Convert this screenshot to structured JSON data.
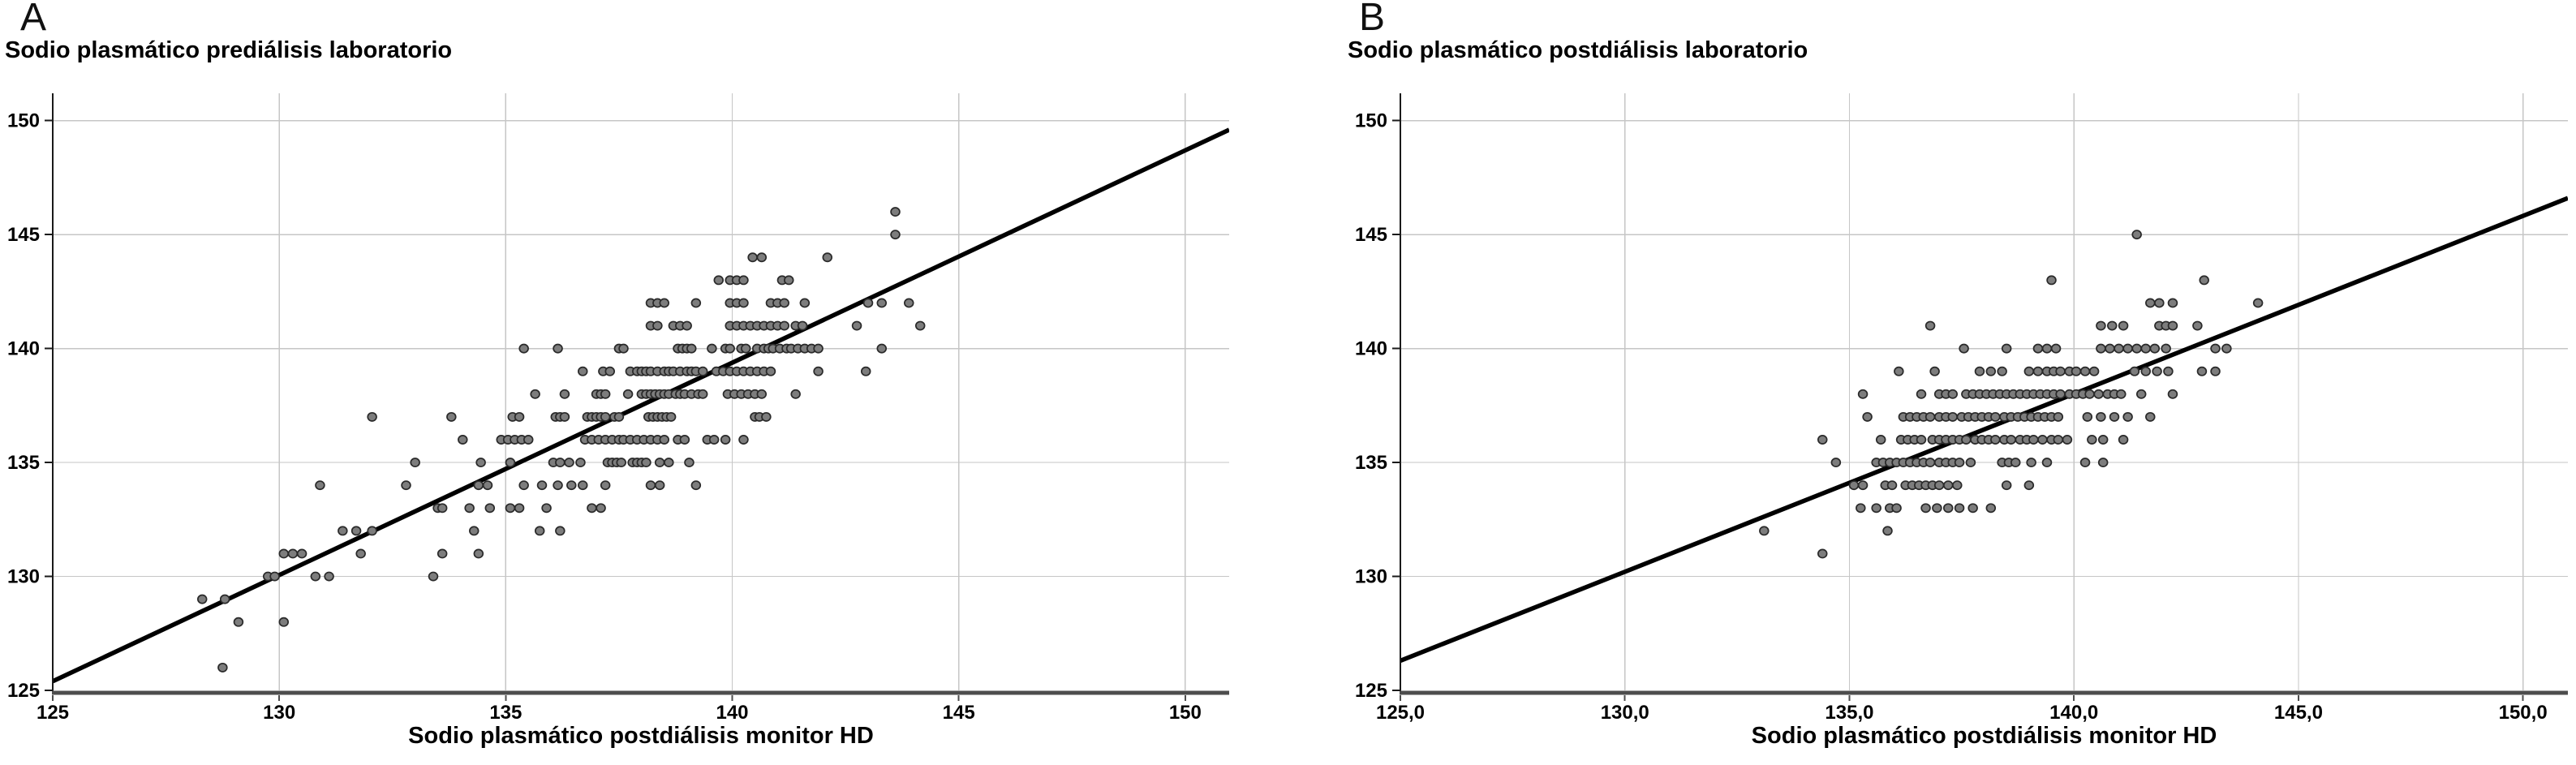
{
  "figure": {
    "background": "#ffffff",
    "panel_count": 2
  },
  "colors": {
    "dot_fill": "#7d7d7d",
    "dot_stroke": "#2a2a2a",
    "grid_line": "#c6c6c6",
    "left_axis": "#1a1a1a",
    "bottom_axis": "#4d4d4d",
    "fit_line": "#000000",
    "text": "#000000"
  },
  "chart_data": [
    {
      "type": "scatter",
      "panel_letter": "A",
      "ylabel": "Sodio plasmático prediálisis laboratorio",
      "xlabel": "Sodio plasmático postdiálisis monitor HD",
      "x_ticks": [
        125,
        130,
        135,
        140,
        145,
        150
      ],
      "x_tick_labels": [
        "125",
        "130",
        "135",
        "140",
        "145",
        "150"
      ],
      "y_ticks": [
        125,
        130,
        135,
        140,
        145,
        150
      ],
      "y_tick_labels": [
        "125",
        "130",
        "135",
        "140",
        "145",
        "150"
      ],
      "xlim": [
        125,
        150.97
      ],
      "ylim": [
        125,
        151.2
      ],
      "grid": true,
      "legend": "none",
      "fit_line": {
        "x1": 125,
        "y1": 125.4,
        "x2": 150.97,
        "y2": 149.6
      },
      "rows": [
        {
          "y": 146,
          "x": [
            143.6
          ]
        },
        {
          "y": 145,
          "x": [
            143.6
          ]
        },
        {
          "y": 144,
          "x": [
            140.45,
            140.65,
            142.1
          ]
        },
        {
          "y": 143,
          "x": [
            139.7,
            139.95,
            140.1,
            140.25,
            141.1,
            141.25
          ]
        },
        {
          "y": 142,
          "x": [
            138.2,
            138.35,
            138.5,
            139.2,
            139.95,
            140.1,
            140.25,
            140.85,
            141.0,
            141.15,
            141.6,
            143.0,
            143.3,
            143.9
          ]
        },
        {
          "y": 141,
          "x": [
            138.2,
            138.35,
            138.7,
            138.85,
            139.0,
            139.95,
            140.1,
            140.25,
            140.4,
            140.55,
            140.7,
            140.85,
            141.0,
            141.15,
            141.4,
            141.55,
            142.75,
            144.15
          ]
        },
        {
          "y": 140,
          "x": [
            135.4,
            136.15,
            137.5,
            137.6,
            138.8,
            138.9,
            139.0,
            139.1,
            139.55,
            139.85,
            139.95,
            140.2,
            140.3,
            140.55,
            140.7,
            140.8,
            140.9,
            141.05,
            141.2,
            141.3,
            141.45,
            141.6,
            141.75,
            141.9,
            143.3
          ]
        },
        {
          "y": 139,
          "x": [
            136.7,
            137.15,
            137.3,
            137.75,
            137.9,
            138.0,
            138.1,
            138.2,
            138.35,
            138.5,
            138.6,
            138.7,
            138.85,
            139.0,
            139.1,
            139.2,
            139.35,
            139.65,
            139.8,
            139.95,
            140.1,
            140.25,
            140.4,
            140.55,
            140.7,
            140.85,
            141.9,
            142.95
          ]
        },
        {
          "y": 138,
          "x": [
            135.65,
            136.3,
            137.0,
            137.1,
            137.2,
            137.7,
            138.0,
            138.1,
            138.2,
            138.3,
            138.4,
            138.5,
            138.6,
            138.75,
            138.85,
            138.95,
            139.1,
            139.25,
            139.35,
            139.9,
            140.05,
            140.2,
            140.35,
            140.5,
            140.65,
            141.4
          ]
        },
        {
          "y": 137,
          "x": [
            132.05,
            133.8,
            135.15,
            135.3,
            136.1,
            136.2,
            136.3,
            136.8,
            136.9,
            137.0,
            137.1,
            137.2,
            137.4,
            137.5,
            138.15,
            138.25,
            138.35,
            138.45,
            138.55,
            138.65,
            140.5,
            140.6,
            140.75
          ]
        },
        {
          "y": 136,
          "x": [
            134.05,
            134.9,
            135.05,
            135.2,
            135.35,
            135.5,
            136.75,
            136.9,
            137.05,
            137.2,
            137.35,
            137.5,
            137.6,
            137.75,
            137.9,
            138.05,
            138.2,
            138.35,
            138.5,
            138.8,
            138.95,
            139.45,
            139.6,
            139.85,
            140.25
          ]
        },
        {
          "y": 135,
          "x": [
            133.0,
            134.45,
            135.1,
            136.05,
            136.2,
            136.4,
            136.65,
            137.25,
            137.35,
            137.45,
            137.55,
            137.8,
            137.9,
            138.0,
            138.1,
            138.4,
            138.6,
            139.05
          ]
        },
        {
          "y": 134,
          "x": [
            130.9,
            132.8,
            134.4,
            134.6,
            135.4,
            135.8,
            136.15,
            136.45,
            136.7,
            137.2,
            138.2,
            138.4,
            139.2
          ]
        },
        {
          "y": 133,
          "x": [
            133.5,
            133.6,
            134.2,
            134.65,
            135.1,
            135.3,
            135.9,
            136.9,
            137.1
          ]
        },
        {
          "y": 132,
          "x": [
            131.4,
            131.7,
            132.05,
            134.3,
            135.75,
            136.2
          ]
        },
        {
          "y": 131,
          "x": [
            130.1,
            130.3,
            130.5,
            131.8,
            133.6,
            134.4
          ]
        },
        {
          "y": 130,
          "x": [
            129.75,
            129.9,
            130.8,
            131.1,
            133.4
          ]
        },
        {
          "y": 129,
          "x": [
            128.3,
            128.8
          ]
        },
        {
          "y": 128,
          "x": [
            129.1,
            130.1
          ]
        },
        {
          "y": 126,
          "x": [
            128.75
          ]
        }
      ]
    },
    {
      "type": "scatter",
      "panel_letter": "B",
      "ylabel": "Sodio plasmático postdiálisis laboratorio",
      "xlabel": "Sodio plasmático postdiálisis monitor HD",
      "x_ticks": [
        125,
        130,
        135,
        140,
        145,
        150
      ],
      "x_tick_labels": [
        "125,0",
        "130,0",
        "135,0",
        "140,0",
        "145,0",
        "150,0"
      ],
      "y_ticks": [
        125,
        130,
        135,
        140,
        145,
        150
      ],
      "y_tick_labels": [
        "125",
        "130",
        "135",
        "140",
        "145",
        "150"
      ],
      "xlim": [
        125,
        151.0
      ],
      "ylim": [
        125,
        151.2
      ],
      "grid": true,
      "legend": "none",
      "fit_line": {
        "x1": 125,
        "y1": 126.3,
        "x2": 151.0,
        "y2": 146.6
      },
      "rows": [
        {
          "y": 145,
          "x": [
            141.4
          ]
        },
        {
          "y": 143,
          "x": [
            139.5,
            142.9
          ]
        },
        {
          "y": 142,
          "x": [
            141.7,
            141.9,
            142.2,
            144.1
          ]
        },
        {
          "y": 141,
          "x": [
            136.8,
            140.6,
            140.85,
            141.1,
            141.9,
            142.05,
            142.2,
            142.75
          ]
        },
        {
          "y": 140,
          "x": [
            137.55,
            138.5,
            139.2,
            139.4,
            139.6,
            140.6,
            140.8,
            141.0,
            141.2,
            141.4,
            141.6,
            141.8,
            142.05,
            143.15,
            143.4
          ]
        },
        {
          "y": 139,
          "x": [
            136.1,
            136.9,
            137.9,
            138.15,
            138.4,
            139.0,
            139.2,
            139.4,
            139.55,
            139.7,
            139.9,
            140.05,
            140.25,
            140.45,
            141.35,
            141.6,
            141.85,
            142.1,
            142.85,
            143.15
          ]
        },
        {
          "y": 138,
          "x": [
            135.3,
            136.6,
            137.0,
            137.15,
            137.3,
            137.6,
            137.75,
            137.9,
            138.05,
            138.2,
            138.35,
            138.5,
            138.65,
            138.8,
            138.95,
            139.1,
            139.25,
            139.4,
            139.55,
            139.7,
            139.9,
            140.05,
            140.2,
            140.35,
            140.55,
            140.75,
            140.9,
            141.05,
            141.5,
            142.2
          ]
        },
        {
          "y": 137,
          "x": [
            135.4,
            136.2,
            136.35,
            136.5,
            136.65,
            136.8,
            137.0,
            137.15,
            137.3,
            137.5,
            137.65,
            137.8,
            137.95,
            138.1,
            138.25,
            138.45,
            138.6,
            138.75,
            138.9,
            139.05,
            139.2,
            139.35,
            139.5,
            139.65,
            140.3,
            140.6,
            140.9,
            141.2,
            141.7
          ]
        },
        {
          "y": 136,
          "x": [
            134.4,
            135.7,
            136.15,
            136.3,
            136.45,
            136.6,
            136.85,
            137.0,
            137.15,
            137.3,
            137.45,
            137.6,
            137.8,
            137.95,
            138.1,
            138.25,
            138.45,
            138.6,
            138.8,
            138.95,
            139.1,
            139.3,
            139.5,
            139.65,
            139.85,
            140.4,
            140.65,
            141.1
          ]
        },
        {
          "y": 135,
          "x": [
            134.7,
            135.6,
            135.75,
            135.9,
            136.05,
            136.2,
            136.35,
            136.5,
            136.65,
            136.8,
            137.0,
            137.15,
            137.3,
            137.45,
            137.7,
            138.4,
            138.55,
            138.7,
            139.05,
            139.4,
            140.25,
            140.65
          ]
        },
        {
          "y": 134,
          "x": [
            135.1,
            135.3,
            135.8,
            135.95,
            136.25,
            136.4,
            136.55,
            136.7,
            136.85,
            137.0,
            137.2,
            137.4,
            138.5,
            139.0
          ]
        },
        {
          "y": 133,
          "x": [
            135.25,
            135.6,
            135.9,
            136.05,
            136.7,
            136.95,
            137.2,
            137.45,
            137.75,
            138.15
          ]
        },
        {
          "y": 132,
          "x": [
            133.1,
            135.85
          ]
        },
        {
          "y": 131,
          "x": [
            134.4
          ]
        }
      ]
    }
  ]
}
